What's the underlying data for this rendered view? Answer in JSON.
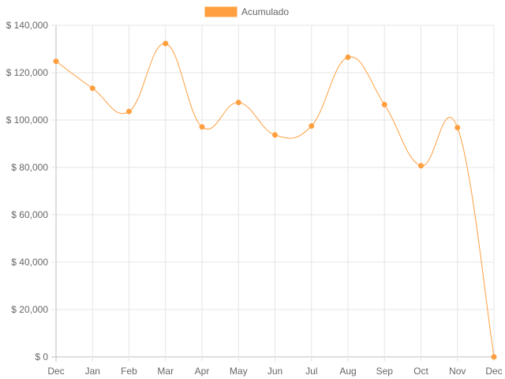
{
  "chart_data": {
    "type": "line",
    "categories": [
      "Dec",
      "Jan",
      "Feb",
      "Mar",
      "Apr",
      "May",
      "Jun",
      "Jul",
      "Aug",
      "Sep",
      "Oct",
      "Nov",
      "Dec"
    ],
    "series": [
      {
        "name": "Acumulado",
        "color": "#ff9f40",
        "values": [
          124800,
          113400,
          103600,
          132300,
          97100,
          107400,
          93700,
          97500,
          126500,
          106500,
          80700,
          96800,
          0
        ]
      }
    ],
    "y_ticks": [
      "$ 140,000",
      "$ 120,000",
      "$ 100,000",
      "$ 80,000",
      "$ 60,000",
      "$ 40,000",
      "$ 20,000",
      "$ 0"
    ],
    "ylim": [
      0,
      140000
    ],
    "grid": true,
    "legend_position": "top-center",
    "line_style": "smooth"
  }
}
